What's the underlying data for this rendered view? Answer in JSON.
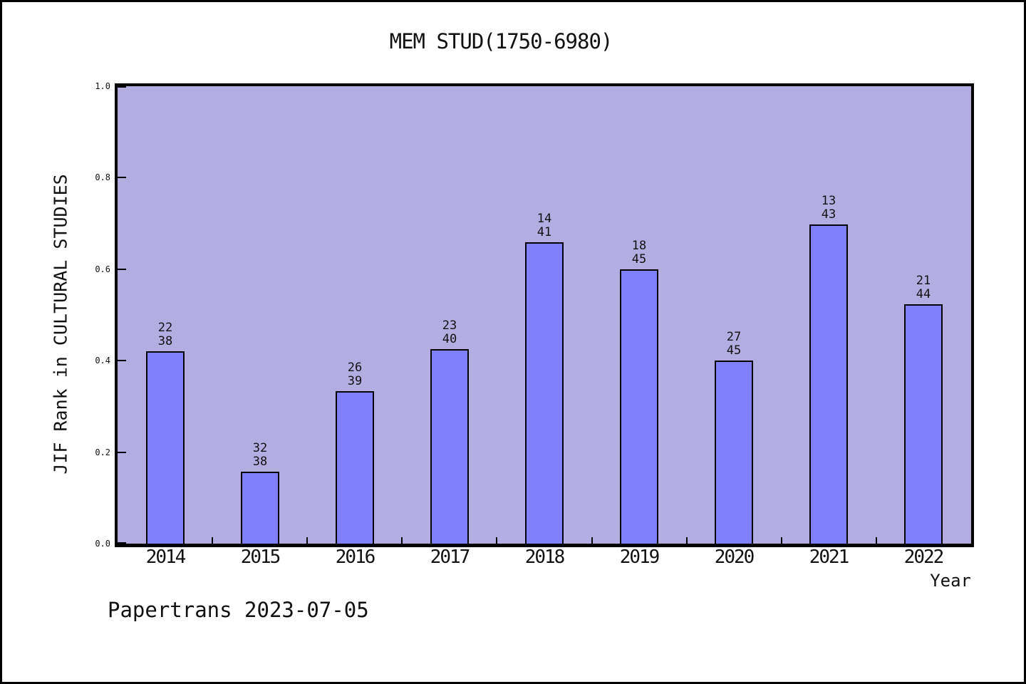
{
  "header": {
    "title": "MEM STUD(1750-6980)"
  },
  "footer": {
    "text": "Papertrans 2023-07-05"
  },
  "chart_data": {
    "type": "bar",
    "title": "MEM STUD(1750-6980)",
    "xlabel": "Year",
    "ylabel": "JIF Rank in CULTURAL STUDIES",
    "categories": [
      "2014",
      "2015",
      "2016",
      "2017",
      "2018",
      "2019",
      "2020",
      "2021",
      "2022"
    ],
    "annotations": [
      {
        "rank": "22",
        "total": "38"
      },
      {
        "rank": "32",
        "total": "38"
      },
      {
        "rank": "26",
        "total": "39"
      },
      {
        "rank": "23",
        "total": "40"
      },
      {
        "rank": "14",
        "total": "41"
      },
      {
        "rank": "18",
        "total": "45"
      },
      {
        "rank": "27",
        "total": "45"
      },
      {
        "rank": "13",
        "total": "43"
      },
      {
        "rank": "21",
        "total": "44"
      }
    ],
    "values": [
      0.4211,
      0.1579,
      0.3333,
      0.425,
      0.6585,
      0.6,
      0.4,
      0.6977,
      0.5227
    ],
    "value_rule": "1 - rank/total",
    "ylim": [
      0.0,
      1.0
    ],
    "yticks": [
      "0.0",
      "0.2",
      "0.4",
      "0.6",
      "0.8",
      "1.0"
    ],
    "grid": false,
    "legend": "none",
    "colors": {
      "bar_fill": "#8080fa",
      "bar_border": "#000000",
      "plot_background": "#b4ade2",
      "page_background": "#ffffff",
      "text": "#111111",
      "spine": "#000000"
    }
  }
}
